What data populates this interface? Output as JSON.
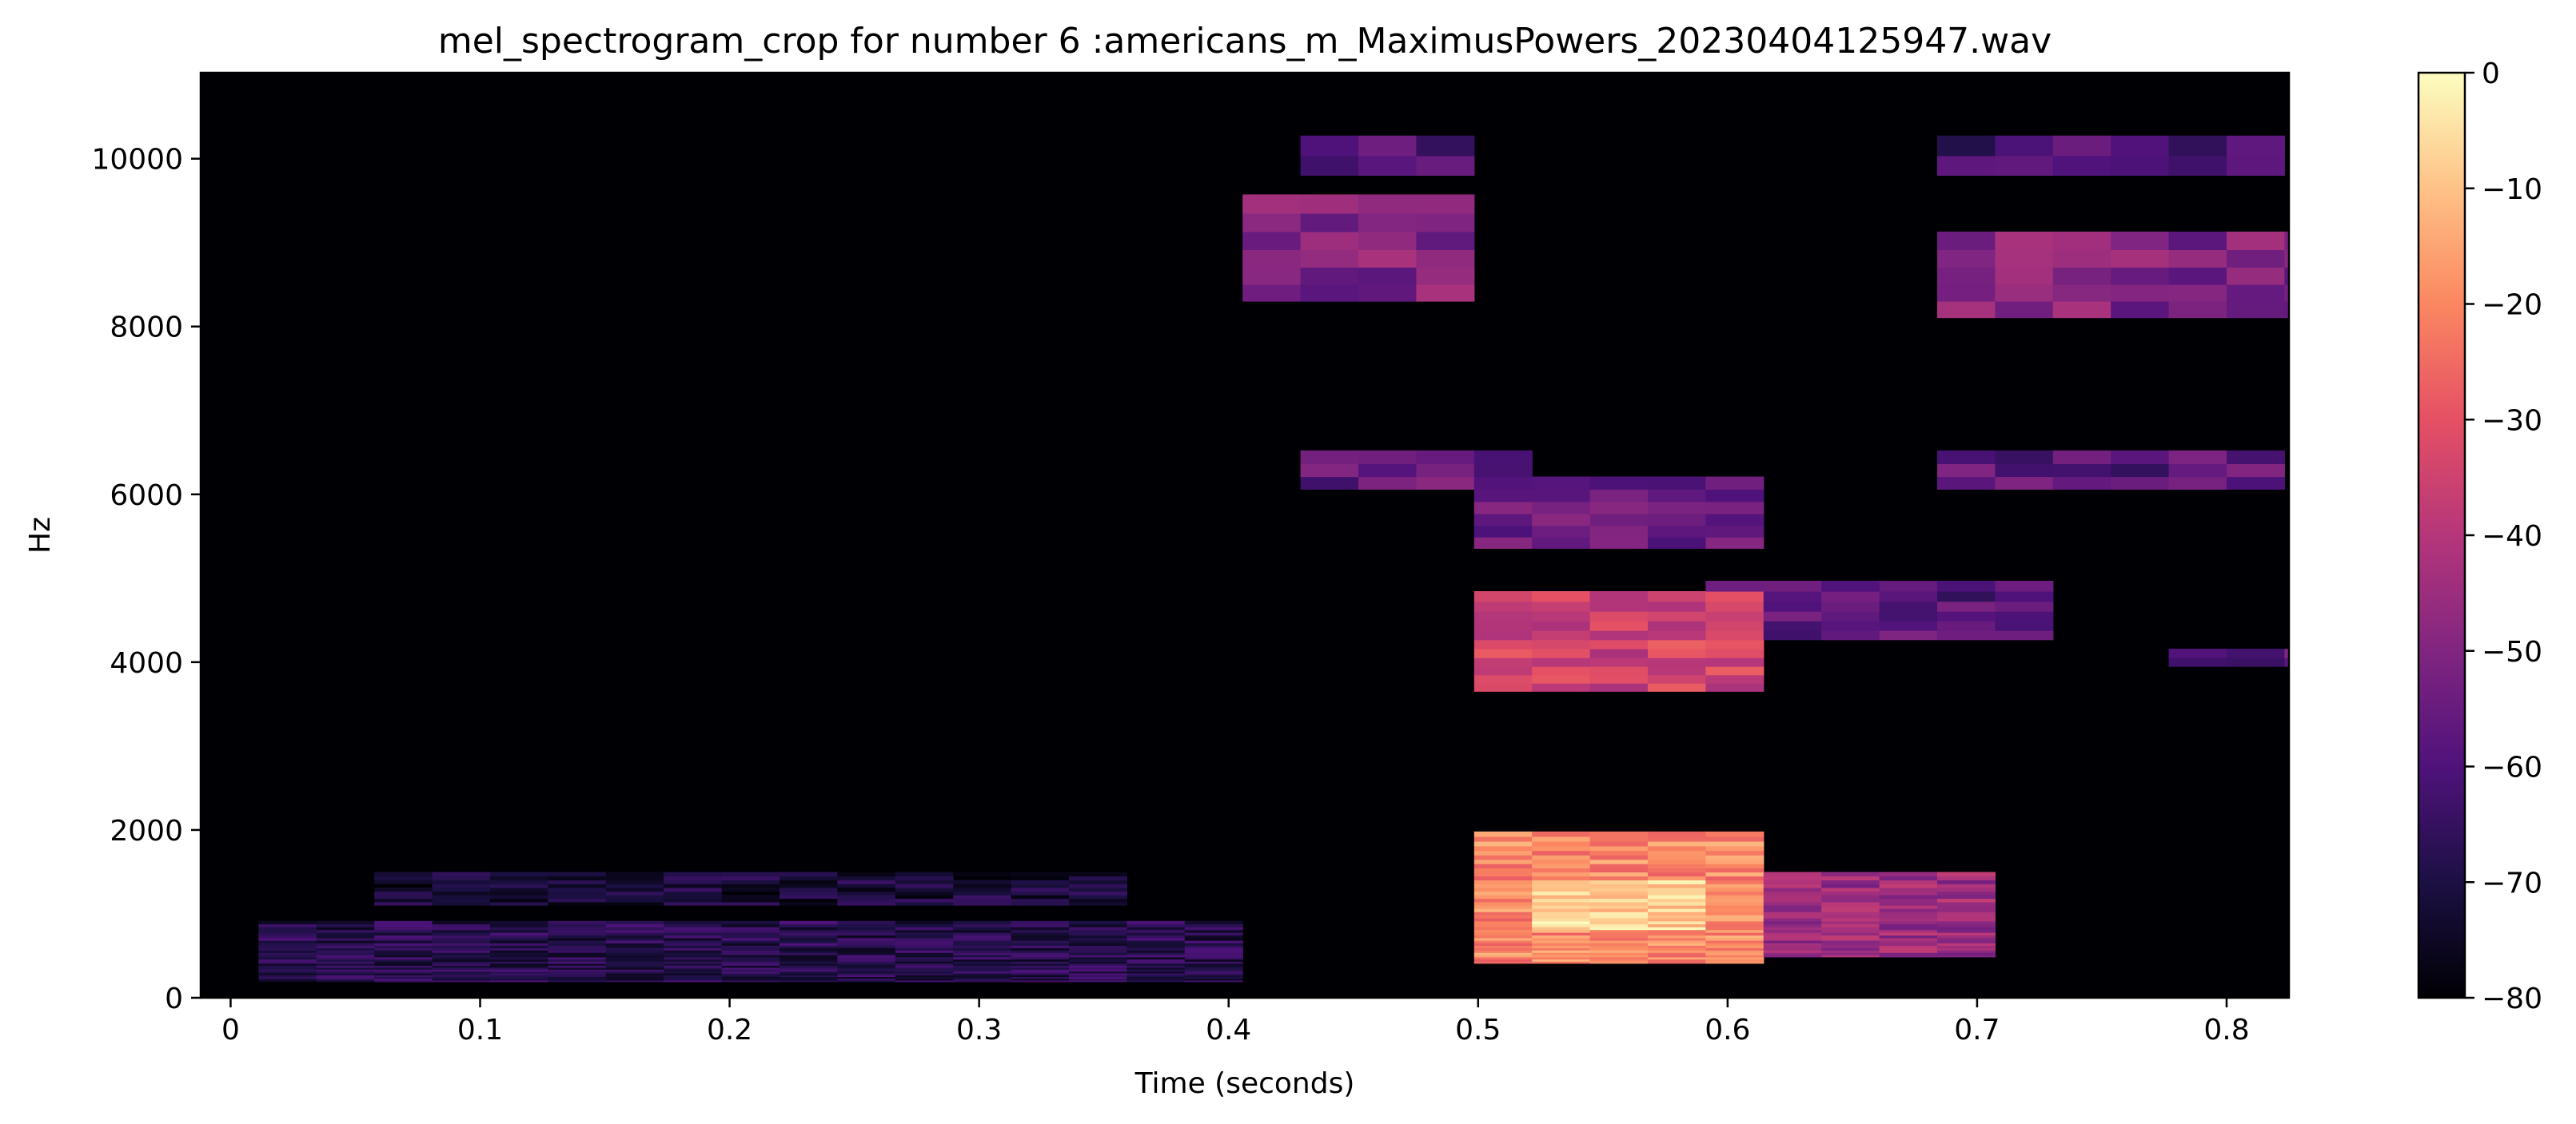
{
  "chart_data": {
    "type": "heatmap",
    "title": "mel_spectrogram_crop for number 6 :americans_m_MaximusPowers_20230404125947.wav",
    "xlabel": "Time (seconds)",
    "ylabel": "Hz",
    "xlim": [
      -0.012,
      0.825
    ],
    "ylim": [
      0,
      11025
    ],
    "x_ticks": [
      0,
      0.1,
      0.2,
      0.3,
      0.4,
      0.5,
      0.6,
      0.7,
      0.8
    ],
    "x_tick_labels": [
      "0",
      "0.1",
      "0.2",
      "0.3",
      "0.4",
      "0.5",
      "0.6",
      "0.7",
      "0.8"
    ],
    "y_ticks": [
      0,
      2000,
      4000,
      6000,
      8000,
      10000
    ],
    "y_tick_labels": [
      "0",
      "2000",
      "4000",
      "6000",
      "8000",
      "10000"
    ],
    "colormap": "magma",
    "colorbar": {
      "range": [
        -80,
        0
      ],
      "ticks": [
        0,
        -10,
        -20,
        -30,
        -40,
        -50,
        -60,
        -70,
        -80
      ],
      "tick_labels": [
        "0",
        "−10",
        "−20",
        "−30",
        "−40",
        "−50",
        "−60",
        "−70",
        "−80"
      ]
    },
    "frame_duration_s": 0.0232,
    "background_db": -80,
    "regions": [
      {
        "t": [
          0.0,
          0.41
        ],
        "hz": [
          200,
          900
        ],
        "db": -68
      },
      {
        "t": [
          0.05,
          0.35
        ],
        "hz": [
          1100,
          1500
        ],
        "db": -72
      },
      {
        "t": [
          0.41,
          0.5
        ],
        "hz": [
          8300,
          9600
        ],
        "db": -50
      },
      {
        "t": [
          0.43,
          0.5
        ],
        "hz": [
          9700,
          10300
        ],
        "db": -58
      },
      {
        "t": [
          0.43,
          0.53
        ],
        "hz": [
          6100,
          6500
        ],
        "db": -55
      },
      {
        "t": [
          0.5,
          0.62
        ],
        "hz": [
          5400,
          6200
        ],
        "db": -55
      },
      {
        "t": [
          0.49,
          0.62
        ],
        "hz": [
          3700,
          4800
        ],
        "db": -35
      },
      {
        "t": [
          0.5,
          0.62
        ],
        "hz": [
          400,
          2000
        ],
        "db": -20
      },
      {
        "t": [
          0.52,
          0.58
        ],
        "hz": [
          800,
          1400
        ],
        "db": -8
      },
      {
        "t": [
          0.6,
          0.74
        ],
        "hz": [
          4300,
          5000
        ],
        "db": -58
      },
      {
        "t": [
          0.62,
          0.7
        ],
        "hz": [
          500,
          1500
        ],
        "db": -45
      },
      {
        "t": [
          0.69,
          0.825
        ],
        "hz": [
          8200,
          9200
        ],
        "db": -50
      },
      {
        "t": [
          0.69,
          0.82
        ],
        "hz": [
          9900,
          10200
        ],
        "db": -62
      },
      {
        "t": [
          0.69,
          0.82
        ],
        "hz": [
          6100,
          6600
        ],
        "db": -58
      },
      {
        "t": [
          0.78,
          0.825
        ],
        "hz": [
          4000,
          4200
        ],
        "db": -58
      }
    ]
  }
}
